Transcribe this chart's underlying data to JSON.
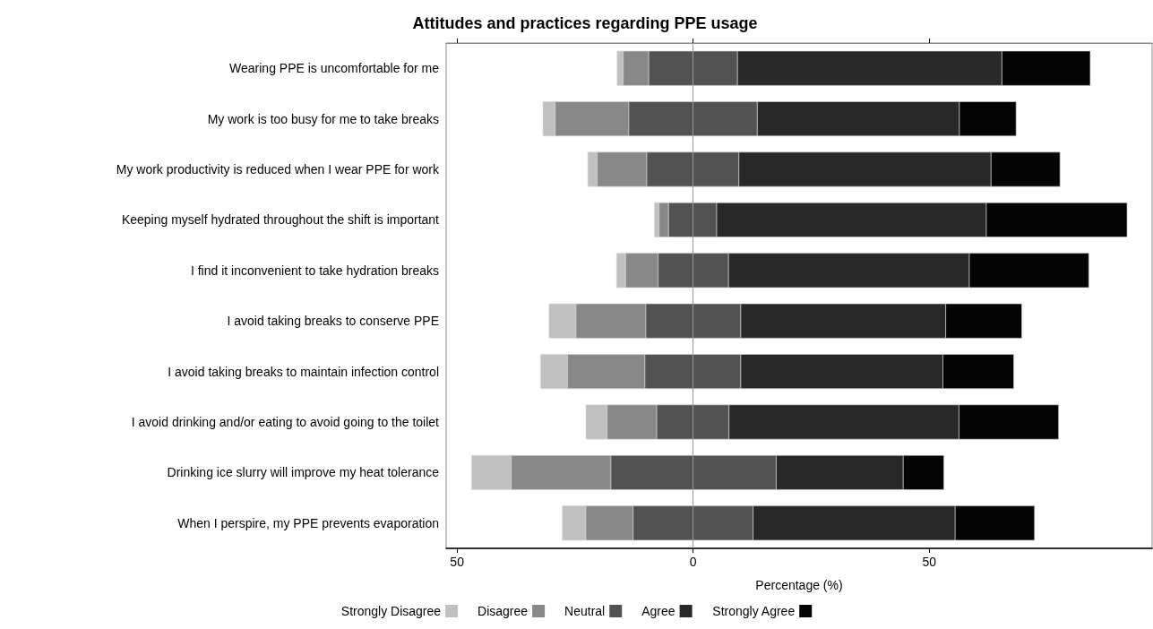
{
  "chart_data": {
    "type": "bar",
    "orientation": "horizontal",
    "title": "Attitudes and practices regarding PPE usage",
    "xlabel": "Percentage (%)",
    "categories": [
      "Wearing PPE is uncomfortable for me",
      "My work is too busy for me to take breaks",
      "My work productivity is reduced when I wear PPE for work",
      "Keeping myself hydrated throughout the shift is important",
      "I find it inconvenient to take hydration breaks",
      "I avoid taking breaks to conserve PPE",
      "I avoid taking breaks to maintain infection control",
      "I avoid drinking and/or eating to avoid going to the toilet",
      "Drinking ice slurry will improve my heat tolerance",
      "When I perspire, my PPE prevents evaporation"
    ],
    "series": [
      {
        "name": "Strongly Disagree",
        "color": "#c0c0c0",
        "values": [
          1.3,
          2.6,
          2.0,
          1.0,
          1.9,
          5.7,
          5.7,
          4.5,
          8.4,
          5.0
        ],
        "base": [
          -16.1,
          -31.8,
          -22.3,
          -8.2,
          -16.2,
          -30.5,
          -32.3,
          -22.7,
          -46.9,
          -27.7
        ]
      },
      {
        "name": "Disagree",
        "color": "#888888",
        "values": [
          5.4,
          15.6,
          10.5,
          2.0,
          6.9,
          14.8,
          16.4,
          10.5,
          21.1,
          10.0
        ],
        "base": [
          -14.8,
          -29.2,
          -20.3,
          -7.2,
          -14.3,
          -24.8,
          -26.6,
          -18.2,
          -38.5,
          -22.7
        ]
      },
      {
        "name": "Neutral",
        "color": "#525252",
        "values": [
          18.8,
          27.2,
          19.5,
          10.2,
          14.9,
          20.1,
          20.3,
          15.3,
          35.0,
          25.4
        ],
        "base": [
          -9.4,
          -13.6,
          -9.8,
          -5.2,
          -7.4,
          -10.0,
          -10.2,
          -7.7,
          -17.4,
          -12.7
        ]
      },
      {
        "name": "Agree",
        "color": "#282828",
        "values": [
          56.0,
          42.8,
          53.4,
          57.1,
          51.0,
          43.4,
          42.8,
          48.7,
          26.9,
          42.8
        ],
        "base": [
          9.4,
          13.6,
          9.7,
          5.0,
          7.5,
          10.1,
          10.1,
          7.6,
          17.6,
          12.7
        ]
      },
      {
        "name": "Strongly Agree",
        "color": "#040404",
        "values": [
          18.7,
          12.0,
          14.6,
          29.8,
          25.3,
          16.1,
          15.0,
          21.1,
          8.6,
          16.8
        ],
        "base": [
          65.4,
          56.4,
          63.1,
          62.1,
          58.5,
          53.5,
          52.9,
          56.3,
          44.5,
          55.5
        ]
      }
    ],
    "xlim": [
      -52.3,
      97.2
    ],
    "xticks": [
      {
        "value": -50,
        "label": "50"
      },
      0,
      50
    ],
    "ref_lines": [
      {
        "axis": "x",
        "value": 0,
        "color": "#999999"
      }
    ],
    "grid": false,
    "legend": "bottom"
  }
}
